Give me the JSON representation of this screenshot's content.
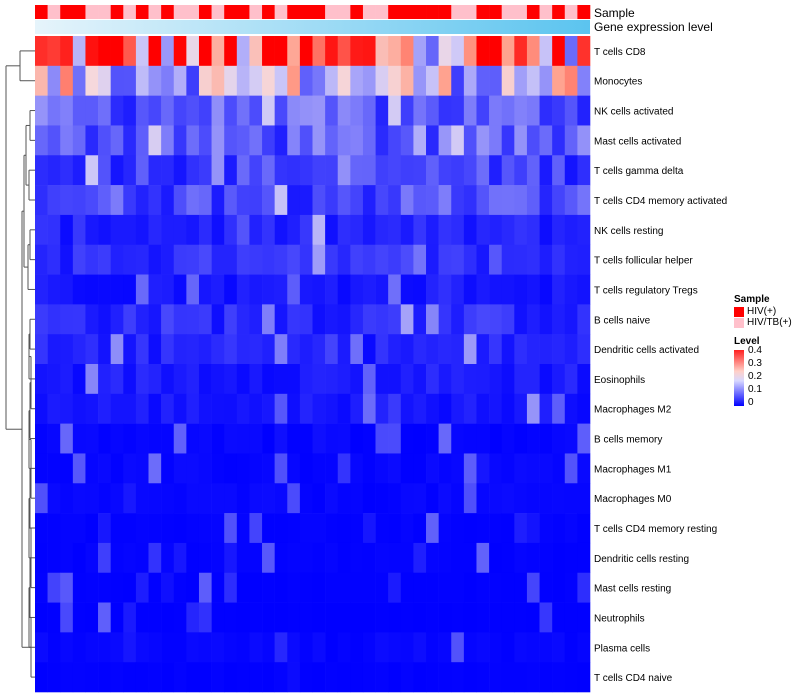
{
  "chart_data": {
    "type": "heatmap",
    "annotation_labels": {
      "sample": "Sample",
      "gene": "Gene expression level"
    },
    "row_labels": [
      "T cells CD8",
      "Monocytes",
      "NK cells activated",
      "Mast cells activated",
      "T cells gamma delta",
      "T cells CD4 memory activated",
      "NK cells resting",
      "T cells follicular helper",
      "T cells regulatory  Tregs",
      "B cells naive",
      "Dendritic cells activated",
      "Eosinophils",
      "Macrophages M2",
      "B cells memory",
      "Macrophages M1",
      "Macrophages M0",
      "T cells CD4 memory resting",
      "Dendritic cells resting",
      "Mast cells resting",
      "Neutrophils",
      "Plasma cells",
      "T cells CD4 naive"
    ],
    "row_means": [
      0.3,
      0.18,
      0.08,
      0.08,
      0.06,
      0.07,
      0.03,
      0.04,
      0.02,
      0.04,
      0.03,
      0.025,
      0.02,
      0.01,
      0.01,
      0.01,
      0.005,
      0.005,
      0.002,
      0.001,
      0.01,
      0.003
    ],
    "sample_groups": [
      "HIV(+)",
      "HIV/TB(+)",
      "HIV(+)",
      "HIV(+)",
      "HIV/TB(+)",
      "HIV/TB(+)",
      "HIV(+)",
      "HIV/TB(+)",
      "HIV(+)",
      "HIV/TB(+)",
      "HIV(+)",
      "HIV/TB(+)",
      "HIV/TB(+)",
      "HIV(+)",
      "HIV/TB(+)",
      "HIV(+)",
      "HIV(+)",
      "HIV/TB(+)",
      "HIV(+)",
      "HIV/TB(+)",
      "HIV(+)",
      "HIV(+)",
      "HIV(+)",
      "HIV/TB(+)",
      "HIV/TB(+)",
      "HIV(+)",
      "HIV/TB(+)",
      "HIV/TB(+)",
      "HIV(+)",
      "HIV(+)",
      "HIV(+)",
      "HIV(+)",
      "HIV(+)",
      "HIV/TB(+)",
      "HIV/TB(+)",
      "HIV(+)",
      "HIV(+)",
      "HIV/TB(+)",
      "HIV/TB(+)",
      "HIV(+)",
      "HIV/TB(+)",
      "HIV(+)",
      "HIV/TB(+)",
      "HIV(+)"
    ],
    "value_range": [
      0,
      0.4
    ],
    "legend": {
      "sample_title": "Sample",
      "sample_items": [
        {
          "label": "HIV(+)",
          "color": "#ff0000"
        },
        {
          "label": "HIV/TB(+)",
          "color": "#ffc0cb"
        }
      ],
      "level_title": "Level",
      "level_ticks": [
        "0.4",
        "0.3",
        "0.2",
        "0.1",
        "0"
      ]
    },
    "colors": {
      "low": "#0000ff",
      "mid": "#e8e8ff",
      "high": "#ff0000",
      "gene_bar_start": "#e6f4fb",
      "gene_bar_end": "#5bc4ef"
    }
  }
}
